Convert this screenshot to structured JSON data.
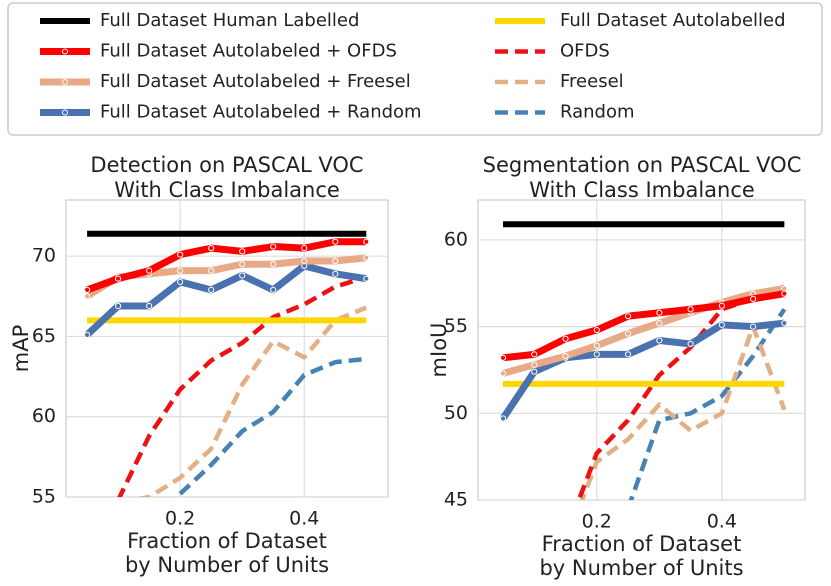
{
  "chart_data": [
    {
      "type": "line",
      "title": [
        "Detection on PASCAL VOC",
        "With Class Imbalance"
      ],
      "xlabel": [
        "Fraction of Dataset",
        "by Number of Units"
      ],
      "ylabel": "mAP",
      "x": [
        0.05,
        0.1,
        0.15,
        0.2,
        0.25,
        0.3,
        0.35,
        0.4,
        0.45,
        0.5
      ],
      "xlim": [
        0.016,
        0.535
      ],
      "xticks": [
        0.2,
        0.4
      ],
      "ylim": [
        55,
        73.5
      ],
      "yticks": [
        55,
        60,
        65,
        70
      ],
      "grid": true,
      "series": [
        {
          "name": "Full Dataset Human Labelled",
          "color": "#000000",
          "style": "solid",
          "markers": false,
          "values": [
            71.4,
            71.4,
            71.4,
            71.4,
            71.4,
            71.4,
            71.4,
            71.4,
            71.4,
            71.4
          ]
        },
        {
          "name": "Full Dataset Autolabeled + OFDS",
          "color": "#ff0000",
          "style": "solid",
          "markers": true,
          "values": [
            67.9,
            68.6,
            69.1,
            70.1,
            70.5,
            70.3,
            70.6,
            70.5,
            70.9,
            70.9
          ]
        },
        {
          "name": "Full Dataset Autolabeled +  Freesel",
          "color": "#e8a987",
          "style": "solid",
          "markers": true,
          "values": [
            67.5,
            68.7,
            68.9,
            69.1,
            69.1,
            69.5,
            69.5,
            69.7,
            69.7,
            69.9
          ]
        },
        {
          "name": "Full Dataset Autolabeled + Random",
          "color": "#4a72b0",
          "style": "solid",
          "markers": true,
          "values": [
            65.1,
            66.9,
            66.9,
            68.4,
            67.9,
            68.8,
            67.9,
            69.4,
            68.9,
            68.6
          ]
        },
        {
          "name": "Full Dataset Autolabelled",
          "color": "#ffd700",
          "style": "solid",
          "markers": false,
          "values": [
            66,
            66,
            66,
            66,
            66,
            66,
            66,
            66,
            66,
            66
          ]
        },
        {
          "name": "OFDS",
          "color": "#ee1111",
          "style": "dashed",
          "markers": false,
          "values": [
            null,
            54.8,
            58.8,
            61.7,
            63.5,
            64.6,
            66.2,
            67.0,
            68.1,
            68.7
          ]
        },
        {
          "name": "Freesel",
          "color": "#e2b084",
          "style": "dashed",
          "markers": false,
          "values": [
            null,
            54.6,
            55.0,
            56.2,
            58.0,
            62.0,
            64.7,
            63.7,
            66.0,
            66.8
          ]
        },
        {
          "name": "Random",
          "color": "#4682b4",
          "style": "dashed",
          "markers": false,
          "values": [
            null,
            null,
            null,
            55.2,
            57.0,
            59.1,
            60.3,
            62.6,
            63.4,
            63.6
          ]
        }
      ]
    },
    {
      "type": "line",
      "title": [
        "Segmentation on PASCAL VOC",
        "With Class Imbalance"
      ],
      "xlabel": [
        "Fraction of Dataset",
        "by Number of Units"
      ],
      "ylabel": "mIoU",
      "x": [
        0.05,
        0.1,
        0.15,
        0.2,
        0.25,
        0.3,
        0.35,
        0.4,
        0.45,
        0.5
      ],
      "xlim": [
        0.01,
        0.533
      ],
      "xticks": [
        0.2,
        0.4
      ],
      "ylim": [
        45,
        62.3
      ],
      "yticks": [
        45,
        50,
        55,
        60
      ],
      "grid": true,
      "series": [
        {
          "color": "#000000",
          "style": "solid",
          "markers": false,
          "values": [
            60.9,
            60.9,
            60.9,
            60.9,
            60.9,
            60.9,
            60.9,
            60.9,
            60.9,
            60.9
          ]
        },
        {
          "color": "#ff0000",
          "style": "solid",
          "markers": true,
          "values": [
            53.2,
            53.4,
            54.3,
            54.8,
            55.6,
            55.8,
            56.0,
            56.2,
            56.6,
            56.9
          ]
        },
        {
          "color": "#e8a987",
          "style": "solid",
          "markers": true,
          "values": [
            52.3,
            52.8,
            53.3,
            53.9,
            54.6,
            55.2,
            55.8,
            56.4,
            56.9,
            57.2
          ]
        },
        {
          "color": "#4a72b0",
          "style": "solid",
          "markers": true,
          "values": [
            49.7,
            52.4,
            53.2,
            53.4,
            53.4,
            54.2,
            54.0,
            55.1,
            55.0,
            55.2
          ]
        },
        {
          "color": "#ffd700",
          "style": "solid",
          "markers": false,
          "values": [
            51.7,
            51.7,
            51.7,
            51.7,
            51.7,
            51.7,
            51.7,
            51.7,
            51.7,
            51.7
          ]
        },
        {
          "color": "#ee1111",
          "style": "dashed",
          "markers": false,
          "values": [
            null,
            null,
            43.0,
            47.7,
            49.6,
            52.2,
            53.8,
            56.0,
            56.6,
            57.3
          ]
        },
        {
          "color": "#e2b084",
          "style": "dashed",
          "markers": false,
          "values": [
            null,
            null,
            42.5,
            47.2,
            48.5,
            50.5,
            49.0,
            50.0,
            55.0,
            50.2
          ]
        },
        {
          "color": "#4682b4",
          "style": "dashed",
          "markers": false,
          "values": [
            null,
            null,
            null,
            null,
            44.5,
            49.6,
            50.0,
            51.0,
            53.3,
            56.0
          ]
        }
      ]
    }
  ]
}
